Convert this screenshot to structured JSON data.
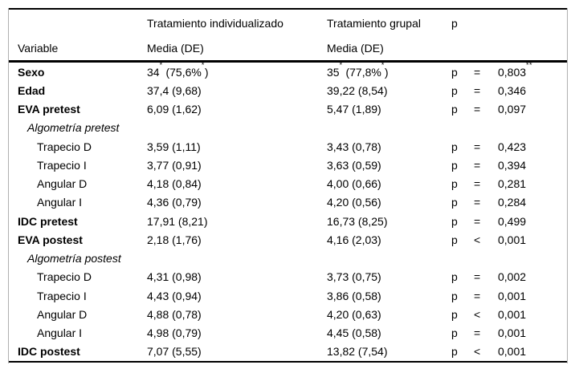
{
  "colors": {
    "rule_black": "#000000",
    "frame_gray": "#b0b0b0",
    "background": "#ffffff",
    "text": "#000000"
  },
  "table": {
    "header": {
      "variable": "Variable",
      "group1_title": "Tratamiento individualizado",
      "group1_subtitle": "Media (DE)",
      "group2_title": "Tratamiento grupal",
      "group2_subtitle": "Media (DE)",
      "p": "p"
    },
    "rows": [
      {
        "label": "Sexo",
        "variant": "bold",
        "g1": [
          {
            "t": "34"
          },
          {
            "t": "*",
            "sup": true
          },
          {
            "t": " (75,6%"
          },
          {
            "t": "*",
            "sup": true
          },
          {
            "t": ")"
          }
        ],
        "g2": [
          {
            "t": "35"
          },
          {
            "t": "*",
            "sup": true
          },
          {
            "t": " (77,8%"
          },
          {
            "t": "*",
            "sup": true
          },
          {
            "t": ")"
          }
        ],
        "p_letter": "p",
        "rel": "=",
        "p_value": [
          {
            "t": "0,803"
          },
          {
            "t": "**",
            "sup": true
          }
        ]
      },
      {
        "label": "Edad",
        "variant": "bold",
        "g1": [
          {
            "t": "37,4 (9,68)"
          }
        ],
        "g2": [
          {
            "t": "39,22 (8,54)"
          }
        ],
        "p_letter": "p",
        "rel": "=",
        "p_value": [
          {
            "t": "0,346"
          }
        ]
      },
      {
        "label": "EVA pretest",
        "variant": "bold",
        "g1": [
          {
            "t": "6,09 (1,62)"
          }
        ],
        "g2": [
          {
            "t": "5,47 (1,89)"
          }
        ],
        "p_letter": "p",
        "rel": "=",
        "p_value": [
          {
            "t": "0,097"
          }
        ]
      },
      {
        "label": "Algometría pretest",
        "variant": "section",
        "g1": [],
        "g2": [],
        "p_letter": "",
        "rel": "",
        "p_value": []
      },
      {
        "label": "Trapecio D",
        "variant": "sub",
        "g1": [
          {
            "t": "3,59 (1,11)"
          }
        ],
        "g2": [
          {
            "t": "3,43 (0,78)"
          }
        ],
        "p_letter": "p",
        "rel": "=",
        "p_value": [
          {
            "t": "0,423"
          }
        ]
      },
      {
        "label": "Trapecio I",
        "variant": "sub",
        "g1": [
          {
            "t": "3,77 (0,91)"
          }
        ],
        "g2": [
          {
            "t": "3,63 (0,59)"
          }
        ],
        "p_letter": "p",
        "rel": "=",
        "p_value": [
          {
            "t": "0,394"
          }
        ]
      },
      {
        "label": "Angular D",
        "variant": "sub",
        "g1": [
          {
            "t": "4,18 (0,84)"
          }
        ],
        "g2": [
          {
            "t": "4,00 (0,66)"
          }
        ],
        "p_letter": "p",
        "rel": "=",
        "p_value": [
          {
            "t": "0,281"
          }
        ]
      },
      {
        "label": "Angular I",
        "variant": "sub",
        "g1": [
          {
            "t": "4,36 (0,79)"
          }
        ],
        "g2": [
          {
            "t": "4,20 (0,56)"
          }
        ],
        "p_letter": "p",
        "rel": "=",
        "p_value": [
          {
            "t": "0,284"
          }
        ]
      },
      {
        "label": "IDC pretest",
        "variant": "bold",
        "g1": [
          {
            "t": "17,91 (8,21)"
          }
        ],
        "g2": [
          {
            "t": "16,73 (8,25)"
          }
        ],
        "p_letter": "p",
        "rel": "=",
        "p_value": [
          {
            "t": "0,499"
          }
        ]
      },
      {
        "label": "EVA postest",
        "variant": "bold",
        "g1": [
          {
            "t": "2,18 (1,76)"
          }
        ],
        "g2": [
          {
            "t": "4,16 (2,03)"
          }
        ],
        "p_letter": "p",
        "rel": "<",
        "p_value": [
          {
            "t": "0,001"
          }
        ]
      },
      {
        "label": "Algometría postest",
        "variant": "section",
        "g1": [],
        "g2": [],
        "p_letter": "",
        "rel": "",
        "p_value": []
      },
      {
        "label": "Trapecio D",
        "variant": "sub",
        "g1": [
          {
            "t": "4,31 (0,98)"
          }
        ],
        "g2": [
          {
            "t": "3,73 (0,75)"
          }
        ],
        "p_letter": "p",
        "rel": "=",
        "p_value": [
          {
            "t": "0,002"
          }
        ]
      },
      {
        "label": "Trapecio I",
        "variant": "sub",
        "g1": [
          {
            "t": "4,43 (0,94)"
          }
        ],
        "g2": [
          {
            "t": "3,86 (0,58)"
          }
        ],
        "p_letter": "p",
        "rel": "=",
        "p_value": [
          {
            "t": "0,001"
          }
        ]
      },
      {
        "label": "Angular D",
        "variant": "sub",
        "g1": [
          {
            "t": "4,88 (0,78)"
          }
        ],
        "g2": [
          {
            "t": "4,20 (0,63)"
          }
        ],
        "p_letter": "p",
        "rel": "<",
        "p_value": [
          {
            "t": "0,001"
          }
        ]
      },
      {
        "label": "Angular I",
        "variant": "sub",
        "g1": [
          {
            "t": "4,98 (0,79)"
          }
        ],
        "g2": [
          {
            "t": "4,45 (0,58)"
          }
        ],
        "p_letter": "p",
        "rel": "=",
        "p_value": [
          {
            "t": "0,001"
          }
        ]
      },
      {
        "label": "IDC postest",
        "variant": "bold",
        "g1": [
          {
            "t": "7,07 (5,55)"
          }
        ],
        "g2": [
          {
            "t": "13,82 (7,54)"
          }
        ],
        "p_letter": "p",
        "rel": "<",
        "p_value": [
          {
            "t": "0,001"
          }
        ]
      }
    ]
  }
}
